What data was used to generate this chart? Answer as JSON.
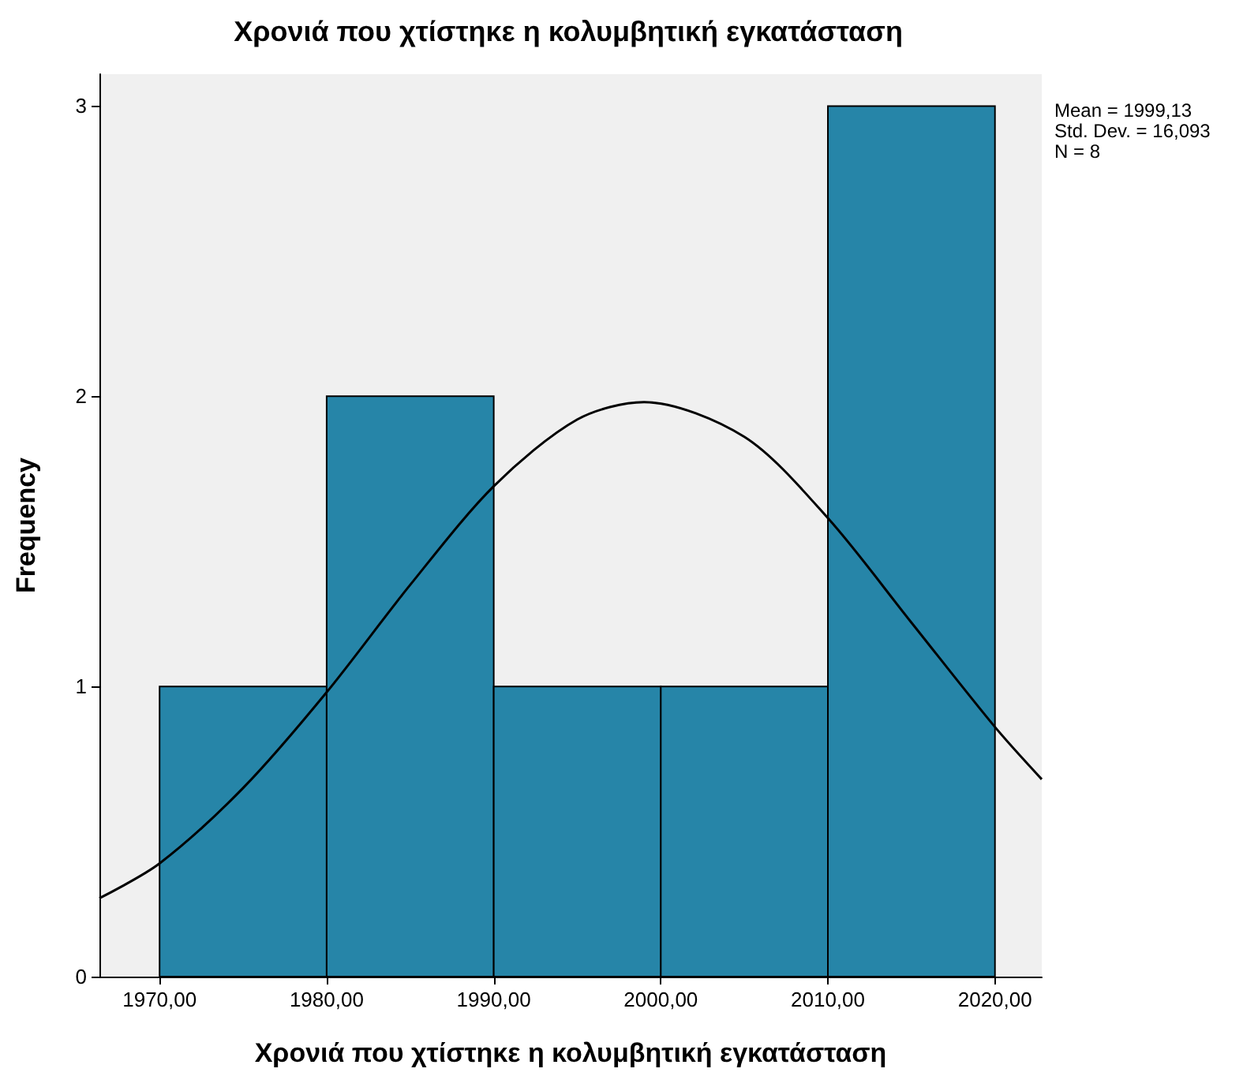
{
  "chart_data": {
    "type": "histogram",
    "title": "Χρονιά που χτίστηκε η κολυμβητική εγκατάσταση",
    "xlabel": "Χρονιά που χτίστηκε η κολυμβητική εγκατάσταση",
    "ylabel": "Frequency",
    "bins": [
      1970,
      1980,
      1990,
      2000,
      2010,
      2020
    ],
    "values": [
      1,
      2,
      1,
      1,
      3
    ],
    "color": "#2685a8",
    "series": [
      {
        "type": "line",
        "color": "#000000",
        "x": [
          1966.4,
          1970,
          1975,
          1980,
          1985,
          1990,
          1995,
          1999,
          2005,
          2010,
          2015,
          2020,
          2022.8
        ],
        "values": [
          0.27,
          0.39,
          0.65,
          0.98,
          1.35,
          1.69,
          1.92,
          1.98,
          1.86,
          1.58,
          1.22,
          0.86,
          0.68
        ]
      }
    ],
    "marker": "none",
    "xlim": [
      1966.4,
      2022.8
    ],
    "ylim": [
      0,
      3.11
    ],
    "xticks": [
      {
        "value": 1970,
        "label": "1970,00"
      },
      {
        "value": 1980,
        "label": "1980,00"
      },
      {
        "value": 1990,
        "label": "1990,00"
      },
      {
        "value": 2000,
        "label": "2000,00"
      },
      {
        "value": 2010,
        "label": "2010,00"
      },
      {
        "value": 2020,
        "label": "2020,00"
      }
    ],
    "yticks": [
      0,
      1,
      2,
      3
    ],
    "grid": false,
    "annotations": [
      "Mean = 1999,13",
      "Std. Dev. = 16,093",
      "N = 8"
    ]
  }
}
